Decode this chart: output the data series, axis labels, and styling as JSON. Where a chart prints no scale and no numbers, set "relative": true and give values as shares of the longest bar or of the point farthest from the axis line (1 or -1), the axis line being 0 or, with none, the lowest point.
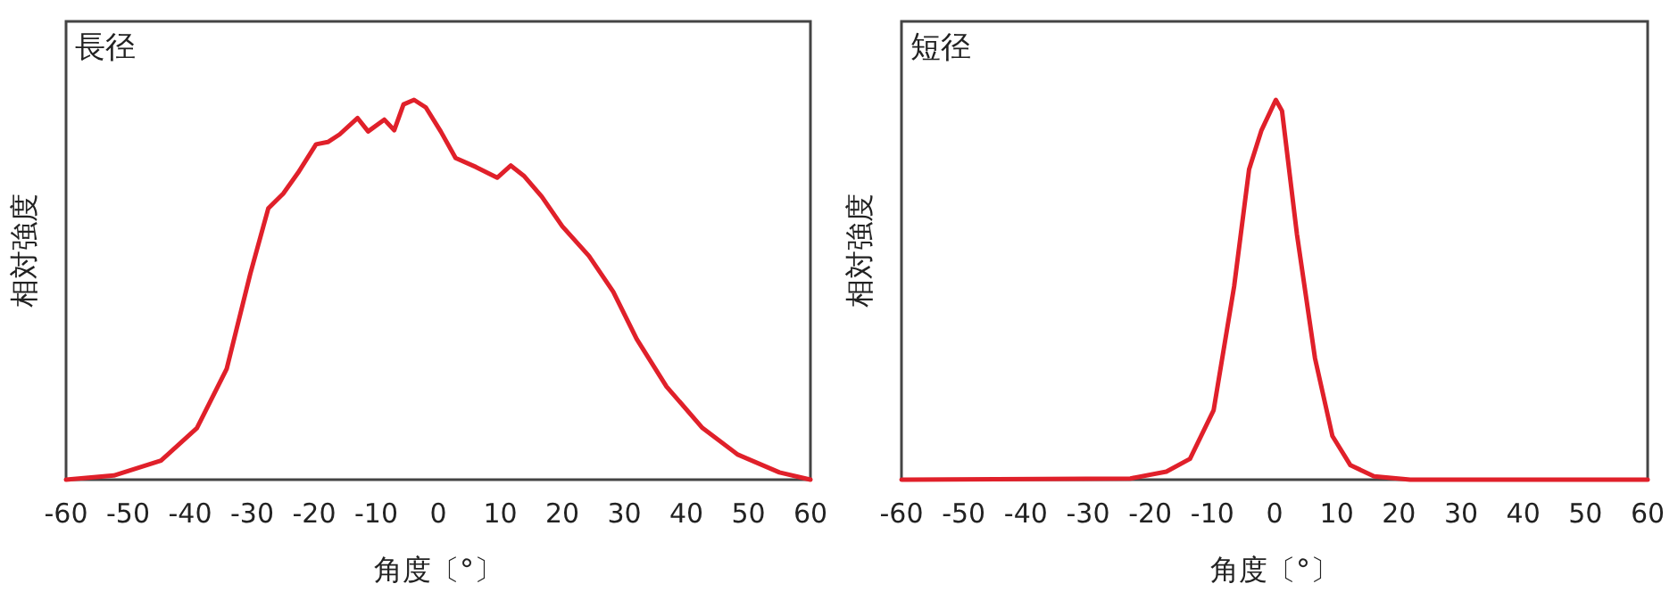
{
  "chart_data": [
    {
      "type": "line",
      "relative": true,
      "title": "長径",
      "xlabel": "角度〔°〕",
      "ylabel": "相対強度",
      "xlim": [
        -60,
        60
      ],
      "xticks": [
        -60,
        -50,
        -40,
        -30,
        -20,
        -10,
        0,
        10,
        20,
        30,
        40,
        50,
        60
      ],
      "x": [
        -60,
        -52.3,
        -44.7,
        -38.9,
        -34.1,
        -30.3,
        -27.4,
        -25.0,
        -22.6,
        -19.7,
        -17.8,
        -15.9,
        -13.0,
        -11.3,
        -8.7,
        -7.1,
        -5.6,
        -3.9,
        -2.0,
        0.4,
        2.8,
        6.1,
        9.5,
        11.7,
        13.8,
        16.7,
        20.0,
        24.3,
        28.2,
        32.0,
        36.8,
        42.6,
        48.3,
        55.0,
        60
      ],
      "series": [
        {
          "color": "#e0202a",
          "values": [
            0,
            0.011,
            0.05,
            0.136,
            0.292,
            0.542,
            0.714,
            0.753,
            0.808,
            0.883,
            0.889,
            0.909,
            0.952,
            0.917,
            0.948,
            0.92,
            0.988,
            1.0,
            0.98,
            0.917,
            0.847,
            0.823,
            0.795,
            0.827,
            0.8,
            0.745,
            0.667,
            0.589,
            0.495,
            0.37,
            0.245,
            0.136,
            0.066,
            0.019,
            0
          ]
        }
      ]
    },
    {
      "type": "line",
      "relative": true,
      "title": "短径",
      "xlabel": "角度〔°〕",
      "ylabel": "相対強度",
      "xlim": [
        -60,
        60
      ],
      "xticks": [
        -60,
        -50,
        -40,
        -30,
        -20,
        -10,
        0,
        10,
        20,
        30,
        40,
        50,
        60
      ],
      "x": [
        -60,
        -23.2,
        -17.4,
        -13.6,
        -9.8,
        -6.5,
        -4.1,
        -2.1,
        0.2,
        1.2,
        3.6,
        6.5,
        9.3,
        12.2,
        16.0,
        21.8,
        60
      ],
      "series": [
        {
          "color": "#e0202a",
          "values": [
            0,
            0.003,
            0.021,
            0.055,
            0.183,
            0.509,
            0.817,
            0.92,
            1.0,
            0.971,
            0.646,
            0.32,
            0.115,
            0.038,
            0.009,
            0,
            0
          ]
        }
      ]
    }
  ]
}
